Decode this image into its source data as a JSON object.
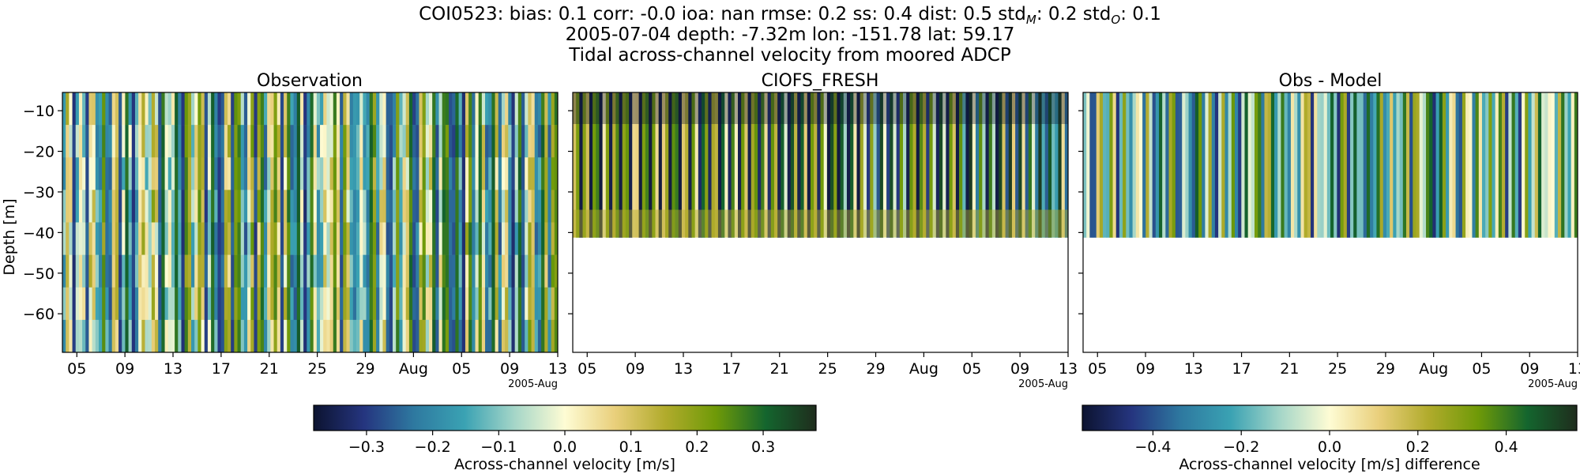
{
  "figure": {
    "title_lines": [
      "COI0523: bias: 0.1  corr: -0.0  ioa: nan  rmse: 0.2  ss: 0.4  dist: 0.5  std_M: 0.2  std_O: 0.1",
      "2005-07-04 depth: -7.32m lon: -151.78 lat: 59.17",
      "Tidal across-channel velocity from moored ADCP"
    ],
    "stats": [
      {
        "name": "bias",
        "value": "0.1"
      },
      {
        "name": "corr",
        "value": "-0.0"
      },
      {
        "name": "ioa",
        "value": "nan"
      },
      {
        "name": "rmse",
        "value": "0.2"
      },
      {
        "name": "ss",
        "value": "0.4"
      },
      {
        "name": "dist",
        "value": "0.5"
      },
      {
        "name": "std",
        "sub": "M",
        "value": "0.2"
      },
      {
        "name": "std",
        "sub": "O",
        "value": "0.1"
      }
    ],
    "station": "COI0523"
  },
  "colors": {
    "cmap": [
      "#0c1330",
      "#25357f",
      "#2e79a0",
      "#3aa2b3",
      "#a5d6c8",
      "#fefcd4",
      "#e9cf7b",
      "#b1ab2c",
      "#6f9a08",
      "#14652e",
      "#1f2d1d"
    ],
    "frame": "#000000"
  },
  "chart_data": [
    {
      "type": "heatmap",
      "title": "Observation",
      "ylabel": "Depth [m]",
      "xlabel": "",
      "x_tick_labels": [
        "05",
        "09",
        "13",
        "17",
        "21",
        "25",
        "29",
        "Aug",
        "05",
        "09",
        "13"
      ],
      "x_offset_label": "2005-Aug",
      "x_range": [
        "2005-07-04",
        "2005-08-14"
      ],
      "y_ticks": [
        -10,
        -20,
        -30,
        -40,
        -50,
        -60
      ],
      "ylim": [
        -69.5,
        -5.5
      ],
      "data_depth_range": [
        -69.5,
        -5.5
      ],
      "value_range": [
        -0.38,
        0.38
      ],
      "colorbar": "velocity"
    },
    {
      "type": "heatmap",
      "title": "CIOFS_FRESH",
      "ylabel": "",
      "xlabel": "",
      "x_tick_labels": [
        "05",
        "09",
        "13",
        "17",
        "21",
        "25",
        "29",
        "Aug",
        "05",
        "09",
        "13"
      ],
      "x_offset_label": "2005-Aug",
      "x_range": [
        "2005-07-04",
        "2005-08-14"
      ],
      "ylim": [
        -69.5,
        -5.5
      ],
      "data_depth_range": [
        -41.2,
        -5.5
      ],
      "value_range": [
        -0.38,
        0.38
      ],
      "colorbar": "velocity"
    },
    {
      "type": "heatmap",
      "title": "Obs - Model",
      "ylabel": "",
      "xlabel": "",
      "x_tick_labels": [
        "05",
        "09",
        "13",
        "17",
        "21",
        "25",
        "29",
        "Aug",
        "05",
        "09",
        "13"
      ],
      "x_offset_label": "2005-Aug",
      "x_range": [
        "2005-07-04",
        "2005-08-14"
      ],
      "ylim": [
        -69.5,
        -5.5
      ],
      "data_depth_range": [
        -41.2,
        -5.5
      ],
      "value_range": [
        -0.56,
        0.56
      ],
      "colorbar": "difference"
    }
  ],
  "colorbars": [
    {
      "id": "velocity",
      "label": "Across-channel velocity [m/s]",
      "range": [
        -0.38,
        0.38
      ],
      "ticks": [
        -0.3,
        -0.2,
        -0.1,
        0.0,
        0.1,
        0.2,
        0.3
      ],
      "tick_labels": [
        "−0.3",
        "−0.2",
        "−0.1",
        "0.0",
        "0.1",
        "0.2",
        "0.3"
      ]
    },
    {
      "id": "difference",
      "label": "Across-channel velocity [m/s] difference",
      "range": [
        -0.56,
        0.56
      ],
      "ticks": [
        -0.4,
        -0.2,
        0.0,
        0.2,
        0.4
      ],
      "tick_labels": [
        "−0.4",
        "−0.2",
        "0.0",
        "0.2",
        "0.4"
      ]
    }
  ],
  "y_tick_labels": [
    "−10",
    "−20",
    "−30",
    "−40",
    "−50",
    "−60"
  ]
}
